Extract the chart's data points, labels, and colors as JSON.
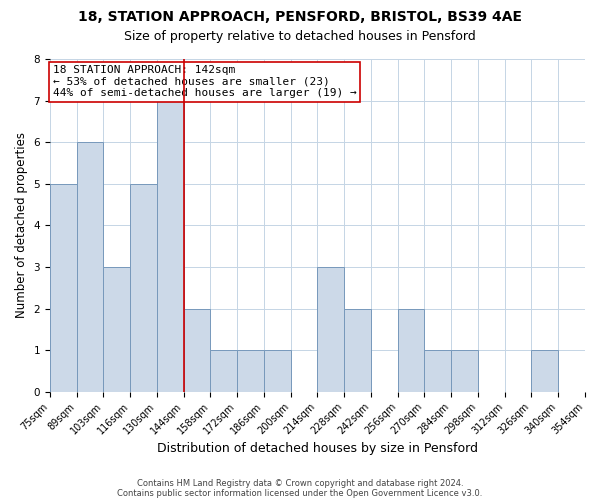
{
  "title1": "18, STATION APPROACH, PENSFORD, BRISTOL, BS39 4AE",
  "title2": "Size of property relative to detached houses in Pensford",
  "xlabel": "Distribution of detached houses by size in Pensford",
  "ylabel": "Number of detached properties",
  "bin_labels": [
    "75sqm",
    "89sqm",
    "103sqm",
    "116sqm",
    "130sqm",
    "144sqm",
    "158sqm",
    "172sqm",
    "186sqm",
    "200sqm",
    "214sqm",
    "228sqm",
    "242sqm",
    "256sqm",
    "270sqm",
    "284sqm",
    "298sqm",
    "312sqm",
    "326sqm",
    "340sqm",
    "354sqm"
  ],
  "bar_heights": [
    5,
    6,
    3,
    5,
    7,
    2,
    1,
    1,
    1,
    0,
    3,
    2,
    0,
    2,
    1,
    1,
    0,
    0,
    1,
    0
  ],
  "bar_color": "#ccd9e8",
  "bar_edge_color": "#7799bb",
  "red_line_color": "#cc0000",
  "annotation_title": "18 STATION APPROACH: 142sqm",
  "annotation_line1": "← 53% of detached houses are smaller (23)",
  "annotation_line2": "44% of semi-detached houses are larger (19) →",
  "ylim": [
    0,
    8
  ],
  "yticks": [
    0,
    1,
    2,
    3,
    4,
    5,
    6,
    7,
    8
  ],
  "footnote1": "Contains HM Land Registry data © Crown copyright and database right 2024.",
  "footnote2": "Contains public sector information licensed under the Open Government Licence v3.0.",
  "background_color": "#ffffff",
  "grid_color": "#c5d5e5",
  "title1_fontsize": 10,
  "title2_fontsize": 9,
  "xlabel_fontsize": 9,
  "ylabel_fontsize": 8.5,
  "annotation_fontsize": 8,
  "tick_fontsize": 7,
  "footnote_fontsize": 6
}
